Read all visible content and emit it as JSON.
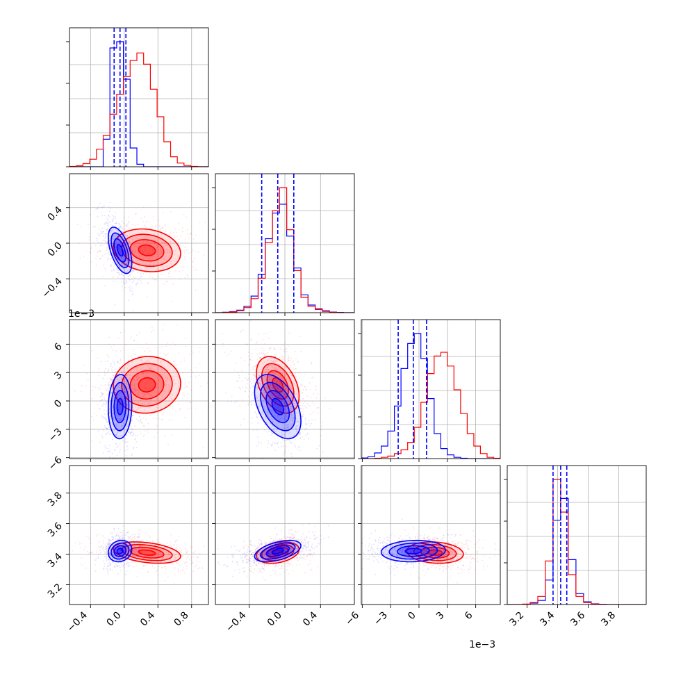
{
  "chart_data": {
    "type": "scatter",
    "kind": "corner-plot",
    "grid": true,
    "parameters": [
      {
        "range": [
          -0.65,
          1.0
        ],
        "ticks": [
          -0.4,
          0.0,
          0.4,
          0.8
        ],
        "tick_labels": [
          "−0.4",
          "0.0",
          "0.4",
          "0.8"
        ]
      },
      {
        "range": [
          -0.78,
          0.78
        ],
        "ticks": [
          -0.4,
          0.0,
          0.4
        ],
        "tick_labels": [
          "−0.4",
          "0.0",
          "0.4"
        ]
      },
      {
        "range": [
          -6.1,
          8.6
        ],
        "ticks": [
          -6,
          -3,
          0,
          3,
          6
        ],
        "tick_labels": [
          "−6",
          "−3",
          "0",
          "3",
          "6"
        ],
        "offset_label": "1e−3"
      },
      {
        "range": [
          3.07,
          3.98
        ],
        "ticks": [
          3.2,
          3.4,
          3.6,
          3.8
        ],
        "tick_labels": [
          "3.2",
          "3.4",
          "3.6",
          "3.8"
        ]
      }
    ],
    "series": [
      {
        "color": "#0000ff",
        "mean": [
          -0.05,
          -0.08,
          -0.6,
          3.42
        ],
        "std": [
          0.07,
          0.13,
          1.7,
          0.035
        ],
        "quantiles": [
          [
            -0.12,
            -0.05,
            0.02
          ],
          [
            -0.26,
            -0.08,
            0.1
          ],
          [
            -2.2,
            -0.6,
            0.8
          ],
          [
            3.37,
            3.42,
            3.46
          ]
        ]
      },
      {
        "color": "#ff0000",
        "mean": [
          0.27,
          -0.08,
          1.7,
          3.41
        ],
        "std": [
          0.2,
          0.12,
          1.5,
          0.035
        ],
        "quantiles": []
      }
    ],
    "histograms": [
      {
        "edges": [
          -0.65,
          -0.57,
          -0.49,
          -0.41,
          -0.33,
          -0.25,
          -0.17,
          -0.09,
          -0.01,
          0.07,
          0.15,
          0.23,
          0.31,
          0.39,
          0.47,
          0.55,
          0.63,
          0.71,
          0.79,
          0.87,
          0.95,
          1.0
        ],
        "blue": [
          0,
          0,
          0,
          0,
          0,
          22,
          95,
          100,
          70,
          15,
          2,
          0,
          0,
          0,
          0,
          0,
          0,
          0,
          0,
          0,
          0
        ],
        "red": [
          0.3,
          0.8,
          2.5,
          6,
          14,
          25,
          42,
          58,
          72,
          85,
          91,
          82,
          62,
          40,
          20,
          8,
          3,
          1,
          0.3,
          0,
          0
        ]
      },
      {
        "edges": [
          -0.78,
          -0.7,
          -0.62,
          -0.54,
          -0.46,
          -0.38,
          -0.3,
          -0.22,
          -0.14,
          -0.06,
          0.02,
          0.1,
          0.18,
          0.26,
          0.34,
          0.42,
          0.5,
          0.58,
          0.66,
          0.78
        ],
        "blue": [
          0,
          0.3,
          0.8,
          2,
          5,
          13,
          30,
          58,
          78,
          85,
          60,
          35,
          14,
          6,
          3,
          1.5,
          0.5,
          0.2,
          0
        ],
        "red": [
          0,
          0.2,
          0.6,
          1.5,
          4,
          11,
          27,
          55,
          80,
          98,
          65,
          33,
          12,
          5,
          2.5,
          1,
          0.4,
          0.1,
          0
        ]
      },
      {
        "edges": [
          -6.1,
          -5.4,
          -4.7,
          -4.0,
          -3.3,
          -2.6,
          -1.9,
          -1.2,
          -0.5,
          0.2,
          0.9,
          1.6,
          2.3,
          3.0,
          3.7,
          4.4,
          5.1,
          5.8,
          6.5,
          7.2,
          7.9,
          8.6
        ],
        "blue": [
          0.5,
          1.5,
          4.5,
          10,
          22,
          42,
          72,
          92,
          100,
          80,
          48,
          20,
          8,
          3,
          1,
          0.3,
          0,
          0,
          0,
          0,
          0
        ],
        "red": [
          0,
          0,
          0.3,
          1,
          2,
          4,
          7,
          13,
          25,
          45,
          68,
          82,
          85,
          74,
          55,
          36,
          20,
          10,
          4,
          1,
          0.3
        ]
      },
      {
        "edges": [
          3.07,
          3.12,
          3.17,
          3.22,
          3.27,
          3.32,
          3.37,
          3.42,
          3.47,
          3.52,
          3.57,
          3.62,
          3.67,
          3.72,
          3.77,
          3.82,
          3.87,
          3.92,
          3.98
        ],
        "blue": [
          0,
          0,
          0.2,
          1,
          3,
          18,
          62,
          78,
          33,
          8,
          2,
          0.5,
          0.2,
          0,
          0,
          0,
          0,
          0
        ],
        "red": [
          0,
          0,
          0.3,
          1.5,
          6,
          32,
          92,
          68,
          22,
          6,
          1.5,
          0.4,
          0.1,
          0,
          0,
          0,
          0,
          0
        ]
      }
    ]
  }
}
